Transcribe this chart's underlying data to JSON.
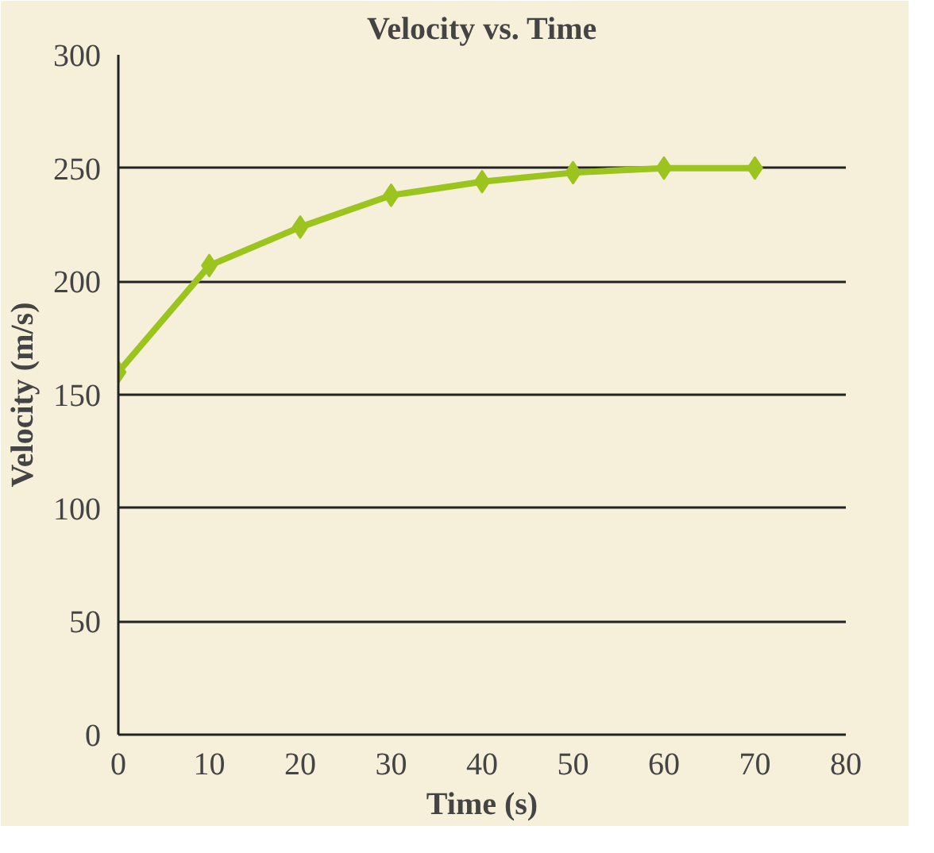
{
  "chart_data": {
    "type": "line",
    "title": "Velocity vs. Time",
    "xlabel": "Time (s)",
    "ylabel": "Velocity (m/s)",
    "x": [
      0,
      10,
      20,
      30,
      40,
      50,
      60,
      70
    ],
    "series": [
      {
        "color": "#9cc41e",
        "values": [
          160,
          207,
          224,
          238,
          244,
          248,
          250,
          250
        ]
      }
    ],
    "xlim": [
      0,
      80
    ],
    "xticks": [
      0,
      10,
      20,
      30,
      40,
      50,
      60,
      70,
      80
    ],
    "ylim": [
      0,
      300
    ],
    "yticks": [
      0,
      50,
      100,
      150,
      200,
      250,
      300
    ],
    "grid": "y",
    "marker": "diamond",
    "line_style": "solid"
  }
}
